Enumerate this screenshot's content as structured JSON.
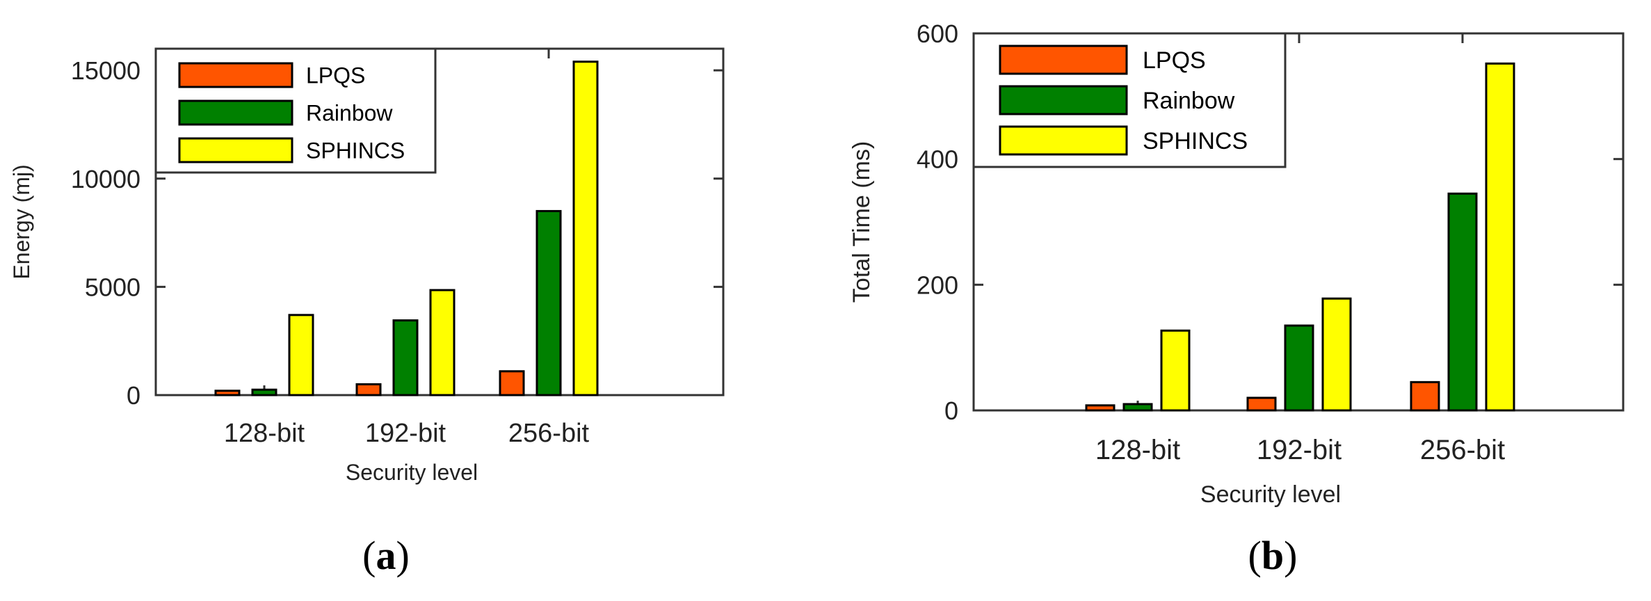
{
  "chart_data": [
    {
      "panel": "(a)",
      "caption_letter": "a",
      "type": "bar",
      "categories": [
        "128-bit",
        "192-bit",
        "256-bit"
      ],
      "series": [
        {
          "name": "LPQS",
          "color": "#FF5500",
          "values": [
            200,
            500,
            1100
          ]
        },
        {
          "name": "Rainbow",
          "color": "#008000",
          "values": [
            250,
            3450,
            8500
          ]
        },
        {
          "name": "SPHINCS",
          "color": "#FFFF00",
          "values": [
            3700,
            4850,
            15400
          ]
        }
      ],
      "xlabel": "Security level",
      "ylabel": "Energy (mj)",
      "ylim": [
        0,
        16000
      ],
      "yticks": [
        0,
        5000,
        10000,
        15000
      ],
      "grid": false,
      "legend": "top-left"
    },
    {
      "panel": "(b)",
      "caption_letter": "b",
      "type": "bar",
      "categories": [
        "128-bit",
        "192-bit",
        "256-bit"
      ],
      "series": [
        {
          "name": "LPQS",
          "color": "#FF5500",
          "values": [
            8,
            20,
            45
          ]
        },
        {
          "name": "Rainbow",
          "color": "#008000",
          "values": [
            10,
            135,
            345
          ]
        },
        {
          "name": "SPHINCS",
          "color": "#FFFF00",
          "values": [
            127,
            178,
            552
          ]
        }
      ],
      "xlabel": "Security level",
      "ylabel": "Total Time (ms)",
      "ylim": [
        0,
        600
      ],
      "yticks": [
        0,
        200,
        400,
        600
      ],
      "grid": false,
      "legend": "top-left"
    }
  ]
}
